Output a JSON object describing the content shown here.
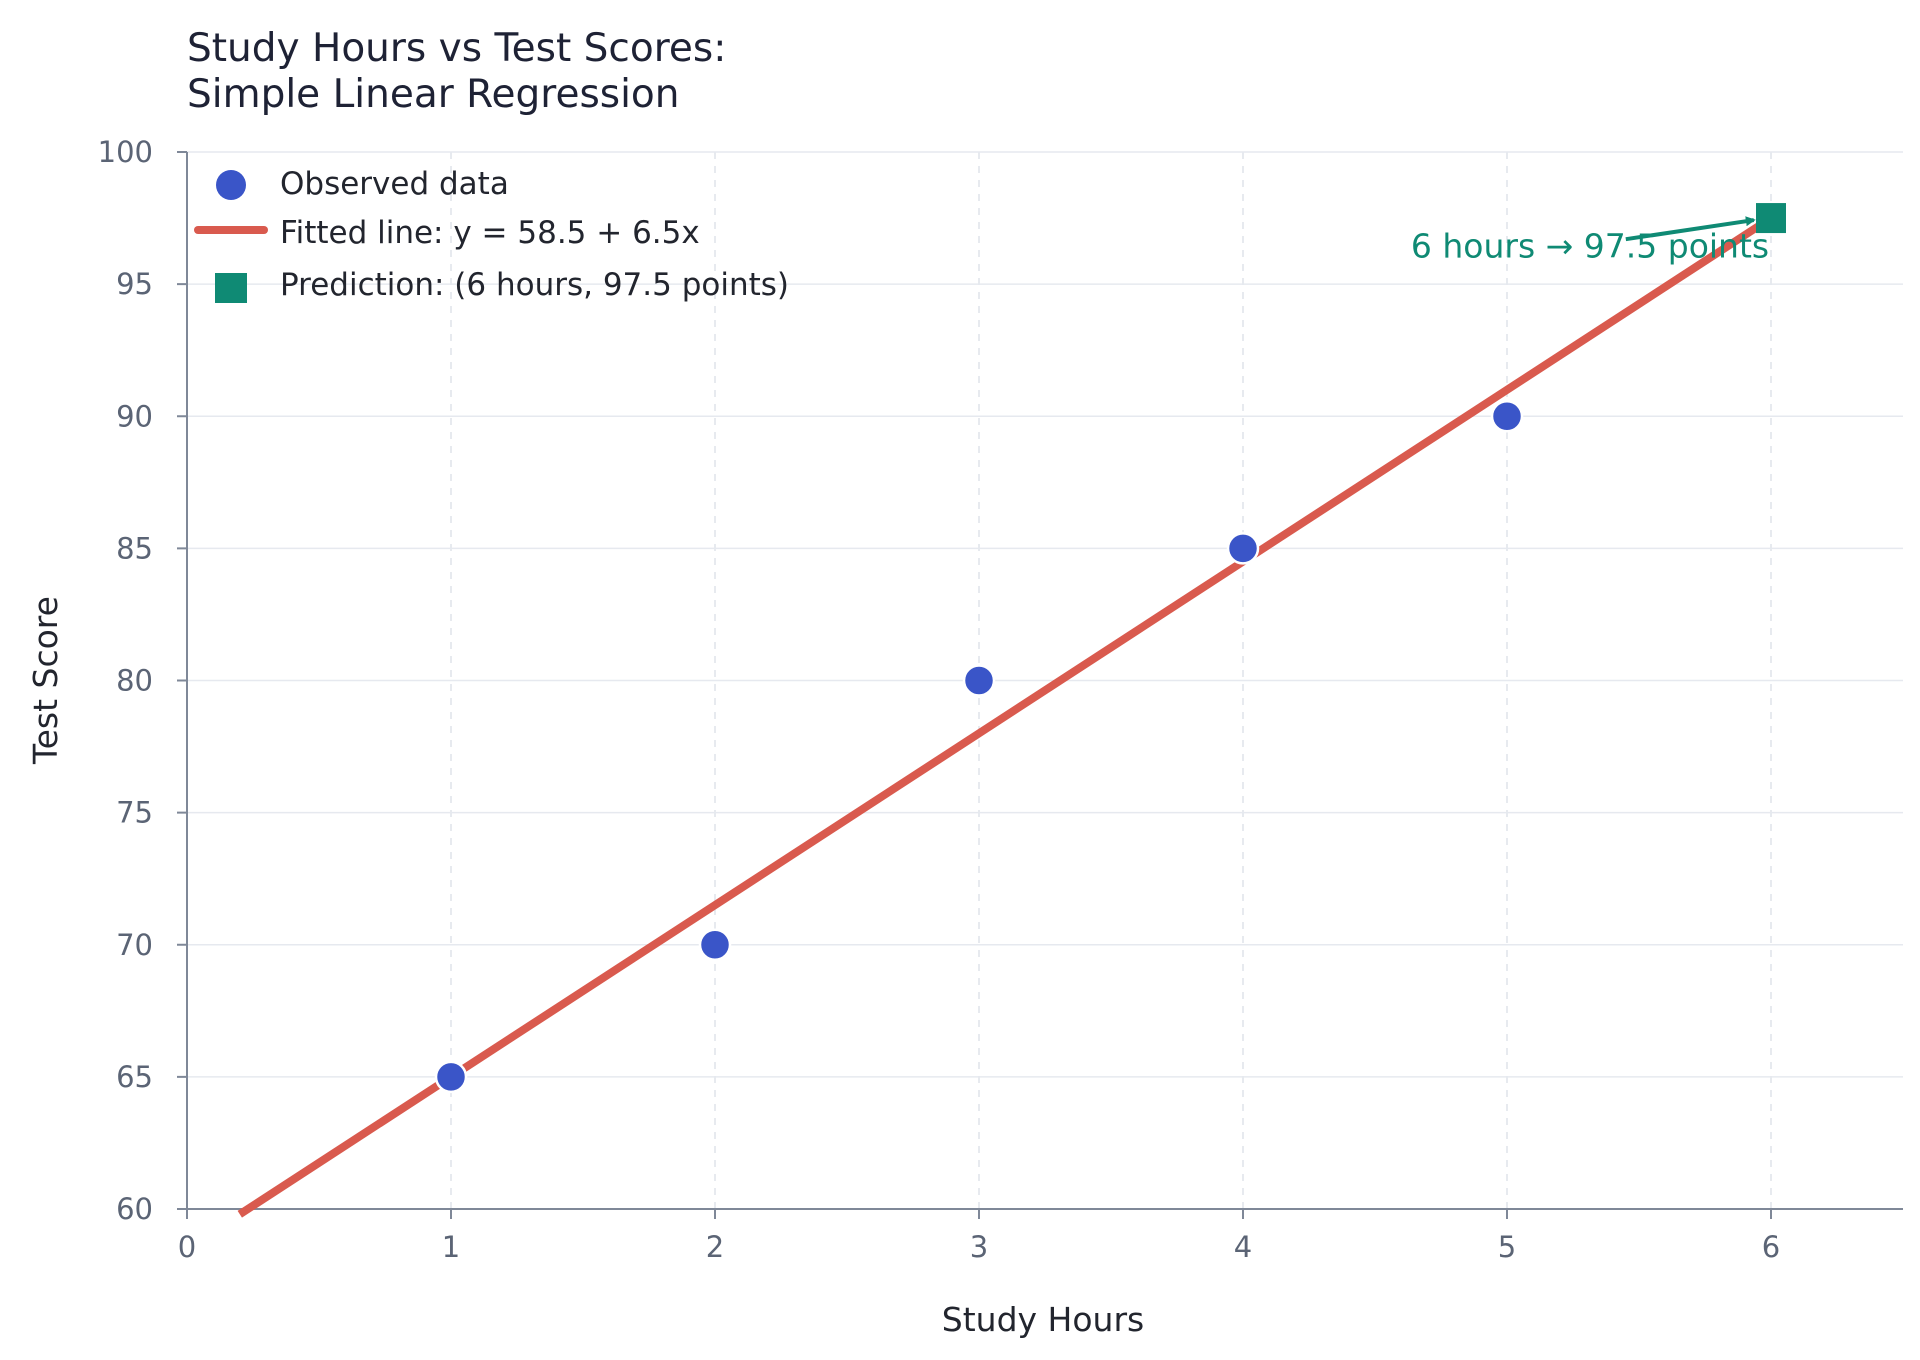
{
  "chart_data": {
    "type": "scatter",
    "title_lines": [
      "Study Hours vs Test Scores:",
      "Simple Linear Regression"
    ],
    "xlabel": "Study Hours",
    "ylabel": "Test Score",
    "xlim": [
      0,
      6.5
    ],
    "ylim": [
      60,
      100
    ],
    "x_ticks": [
      "0",
      "1",
      "2",
      "3",
      "4",
      "5",
      "6"
    ],
    "y_ticks": [
      "60",
      "65",
      "70",
      "75",
      "80",
      "85",
      "90",
      "95",
      "100"
    ],
    "grid": true,
    "legend_position": "top-left",
    "series": [
      {
        "name": "Observed data",
        "kind": "scatter",
        "color": "#3a55c8",
        "points": [
          {
            "x": 1,
            "y": 65
          },
          {
            "x": 2,
            "y": 70
          },
          {
            "x": 3,
            "y": 80
          },
          {
            "x": 4,
            "y": 85
          },
          {
            "x": 5,
            "y": 90
          }
        ]
      },
      {
        "name": "Fitted line: y = 58.5 + 6.5x",
        "kind": "line",
        "color": "#d95a4e",
        "intercept": 58.5,
        "slope": 6.5,
        "x_range": [
          0.2,
          6.0
        ]
      },
      {
        "name": "Prediction: (6 hours, 97.5 points)",
        "kind": "marker",
        "marker": "square",
        "color": "#0f8a74",
        "point": {
          "x": 6,
          "y": 97.5
        }
      }
    ],
    "annotation": {
      "text": "6 hours → 97.5 points",
      "color": "#0f8a74",
      "text_anchor_data": {
        "x": 5.5,
        "y": 96.2
      },
      "arrow_from": {
        "x": 5.45,
        "y": 96.7
      },
      "arrow_to": {
        "x": 5.95,
        "y": 97.5
      }
    }
  }
}
